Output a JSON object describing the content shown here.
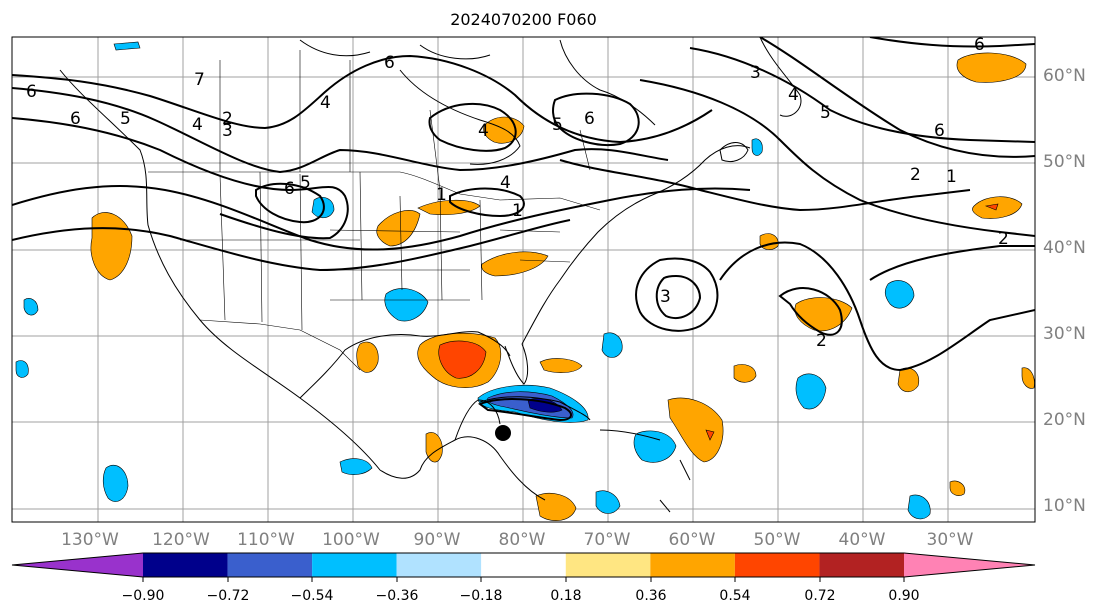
{
  "title": "2024070200 F060",
  "map": {
    "lon_labels": [
      "130°W",
      "120°W",
      "110°W",
      "100°W",
      "90°W",
      "80°W",
      "70°W",
      "60°W",
      "50°W",
      "40°W",
      "30°W"
    ],
    "lat_labels": [
      "10°N",
      "20°N",
      "30°N",
      "40°N",
      "50°N",
      "60°N"
    ],
    "contour_labels": [
      "7",
      "2",
      "3",
      "4",
      "5",
      "6",
      "6",
      "5",
      "4",
      "1",
      "6",
      "5",
      "4",
      "6",
      "6",
      "1",
      "4",
      "3",
      "5",
      "6",
      "2",
      "1",
      "2",
      "3",
      "2",
      "6",
      "4"
    ],
    "colors": {
      "land_line": "#000000",
      "grid": "#a0a0a0",
      "label": "#808080"
    },
    "marker": "black-dot"
  },
  "colorbar": {
    "colors": [
      "#9932cc",
      "#00008b",
      "#3a5fcd",
      "#00bfff",
      "#b0e2ff",
      "#ffffff",
      "#ffe682",
      "#ffa500",
      "#ff4500",
      "#b22222",
      "#ff82b4"
    ],
    "tick_labels": [
      "−0.90",
      "−0.72",
      "−0.54",
      "−0.36",
      "−0.18",
      "0.18",
      "0.36",
      "0.54",
      "0.72",
      "0.90"
    ]
  }
}
